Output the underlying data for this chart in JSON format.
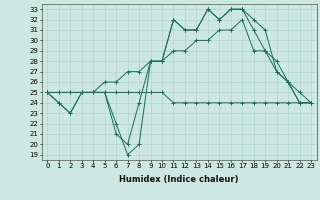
{
  "xlabel": "Humidex (Indice chaleur)",
  "ylabel": "",
  "bg_color": "#cde8e0",
  "grid_color": "#aacfc6",
  "line_color": "#1a6b5a",
  "xlim": [
    -0.5,
    23.5
  ],
  "ylim": [
    18.5,
    33.5
  ],
  "xticks": [
    0,
    1,
    2,
    3,
    4,
    5,
    6,
    7,
    8,
    9,
    10,
    11,
    12,
    13,
    14,
    15,
    16,
    17,
    18,
    19,
    20,
    21,
    22,
    23
  ],
  "yticks": [
    19,
    20,
    21,
    22,
    23,
    24,
    25,
    26,
    27,
    28,
    29,
    30,
    31,
    32,
    33
  ],
  "series": [
    [
      25,
      24,
      23,
      25,
      25,
      25,
      22,
      19,
      20,
      28,
      28,
      32,
      31,
      31,
      33,
      32,
      33,
      33,
      32,
      31,
      27,
      26,
      24,
      24
    ],
    [
      25,
      24,
      23,
      25,
      25,
      25,
      21,
      20,
      24,
      28,
      28,
      32,
      31,
      31,
      33,
      32,
      33,
      33,
      31,
      29,
      27,
      26,
      24,
      24
    ],
    [
      25,
      25,
      25,
      25,
      25,
      25,
      25,
      25,
      25,
      25,
      25,
      24,
      24,
      24,
      24,
      24,
      24,
      24,
      24,
      24,
      24,
      24,
      24,
      24
    ],
    [
      25,
      25,
      25,
      25,
      25,
      26,
      26,
      27,
      27,
      28,
      28,
      29,
      29,
      30,
      30,
      31,
      31,
      32,
      29,
      29,
      28,
      26,
      25,
      24
    ]
  ],
  "xlabel_fontsize": 6,
  "tick_fontsize": 5
}
